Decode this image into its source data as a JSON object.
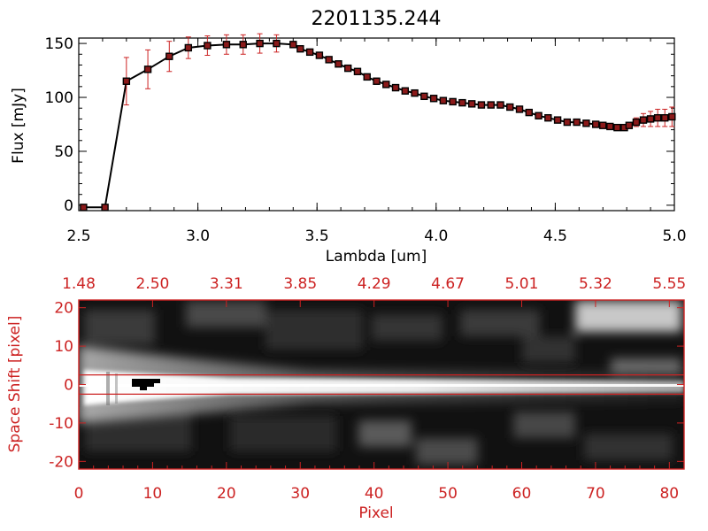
{
  "chart_data": [
    {
      "type": "line",
      "title": "2201135.244",
      "xlabel": "Lambda [um]",
      "ylabel": "Flux [mJy]",
      "xlim": [
        2.5,
        5.0
      ],
      "ylim": [
        -5,
        155
      ],
      "xticks": [
        "2.5",
        "3.0",
        "3.5",
        "4.0",
        "4.5",
        "5.0"
      ],
      "yticks": [
        "0",
        "50",
        "100",
        "150"
      ],
      "grid": false,
      "series": [
        {
          "x": [
            2.52,
            2.61,
            2.7,
            2.79,
            2.88,
            2.96,
            3.04,
            3.12,
            3.19,
            3.26,
            3.33,
            3.4,
            3.43,
            3.47,
            3.51,
            3.55,
            3.59,
            3.63,
            3.67,
            3.71,
            3.75,
            3.79,
            3.83,
            3.87,
            3.91,
            3.95,
            3.99,
            4.03,
            4.07,
            4.11,
            4.15,
            4.19,
            4.23,
            4.27,
            4.31,
            4.35,
            4.39,
            4.43,
            4.47,
            4.51,
            4.55,
            4.59,
            4.63,
            4.67,
            4.7,
            4.73,
            4.76,
            4.79,
            4.81,
            4.84,
            4.87,
            4.9,
            4.93,
            4.96,
            4.99
          ],
          "y": [
            -2,
            -2,
            115,
            126,
            138,
            146,
            148,
            149,
            149,
            150,
            150,
            149,
            145,
            142,
            139,
            135,
            131,
            127,
            124,
            119,
            115,
            112,
            109,
            106,
            104,
            101,
            99,
            97,
            96,
            95,
            94,
            93,
            93,
            93,
            91,
            89,
            86,
            83,
            81,
            79,
            77,
            77,
            76,
            75,
            74,
            73,
            72,
            72,
            74,
            77,
            79,
            80,
            81,
            81,
            82
          ],
          "err": [
            0,
            0,
            22,
            18,
            14,
            10,
            9,
            9,
            9,
            9,
            8,
            0,
            0,
            0,
            0,
            0,
            0,
            0,
            0,
            0,
            0,
            0,
            0,
            0,
            0,
            0,
            0,
            0,
            0,
            0,
            0,
            0,
            0,
            0,
            0,
            0,
            0,
            0,
            0,
            0,
            0,
            0,
            0,
            0,
            0,
            0,
            0,
            0,
            0,
            4,
            6,
            7,
            8,
            8,
            9
          ]
        }
      ]
    },
    {
      "type": "heatmap",
      "xlabel": "Pixel",
      "ylabel": "Space Shift [pixel]",
      "xlim": [
        0,
        82
      ],
      "ylim": [
        -22,
        22
      ],
      "xticks": [
        "0",
        "10",
        "20",
        "30",
        "40",
        "50",
        "60",
        "70",
        "80"
      ],
      "yticks": [
        "-20",
        "-10",
        "0",
        "10",
        "20"
      ],
      "top_axis_ticks": [
        "1.48",
        "2.50",
        "3.31",
        "3.85",
        "4.29",
        "4.67",
        "5.01",
        "5.32",
        "5.55"
      ],
      "extraction_lines": [
        2.5,
        -2.5
      ]
    }
  ]
}
